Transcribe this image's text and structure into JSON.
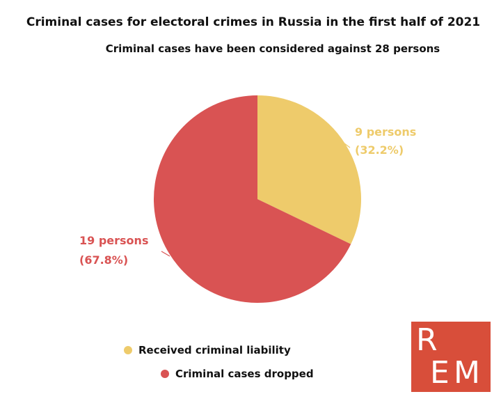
{
  "chart_data": {
    "type": "pie",
    "title": "Criminal cases for electoral crimes in Russia in the first half of 2021",
    "subtitle": "Criminal cases have been considered against 28 persons",
    "slices": [
      {
        "name": "Received criminal liability",
        "value": 9,
        "percent": 32.2,
        "count_label": "9 persons",
        "percent_label": "(32.2%)",
        "color": "#eecb6b"
      },
      {
        "name": "Criminal cases dropped",
        "value": 19,
        "percent": 67.8,
        "count_label": "19 persons",
        "percent_label": "(67.8%)",
        "color": "#d95353"
      }
    ],
    "legend_position": "bottom"
  },
  "logo": {
    "text": "REM",
    "letter_1": "R",
    "letter_2": "E",
    "letter_3": "M",
    "color": "#d84e3a"
  }
}
